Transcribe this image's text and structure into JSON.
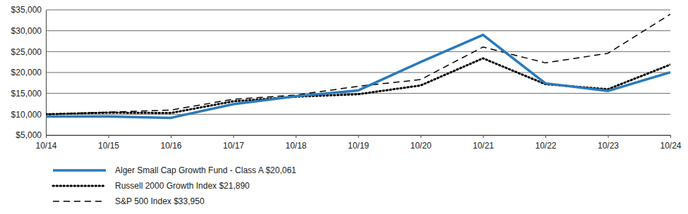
{
  "chart_data": {
    "type": "line",
    "categories": [
      "10/14",
      "10/15",
      "10/16",
      "10/17",
      "10/18",
      "10/19",
      "10/20",
      "10/21",
      "10/22",
      "10/23",
      "10/24"
    ],
    "series": [
      {
        "name": "Alger Small Cap Growth Fund - Class A $20,061",
        "color": "#2a7ab9",
        "line_style": "solid",
        "values": [
          9450,
          9450,
          9150,
          12400,
          14300,
          15700,
          22500,
          29000,
          17400,
          15600,
          20061
        ]
      },
      {
        "name": "Russell 2000 Growth Index $21,890",
        "color": "#000000",
        "line_style": "dotted",
        "values": [
          10000,
          10400,
          10300,
          13100,
          14200,
          14800,
          16900,
          23400,
          17200,
          16000,
          21890
        ]
      },
      {
        "name": "S&P 500 Index $33,950",
        "color": "#000000",
        "line_style": "dashed",
        "values": [
          10000,
          10500,
          11000,
          13600,
          14600,
          16700,
          18300,
          26100,
          22300,
          24600,
          33950
        ]
      }
    ],
    "ylim": [
      5000,
      35000
    ],
    "yticks": [
      {
        "value": 5000,
        "label": "$5,000"
      },
      {
        "value": 10000,
        "label": "$10,000"
      },
      {
        "value": 15000,
        "label": "$15,000"
      },
      {
        "value": 20000,
        "label": "$20,000"
      },
      {
        "value": 25000,
        "label": "$25,000"
      },
      {
        "value": 30000,
        "label": "$30,000"
      },
      {
        "value": 35000,
        "label": "$35,000"
      }
    ],
    "grid": true,
    "legend": "bottom"
  }
}
